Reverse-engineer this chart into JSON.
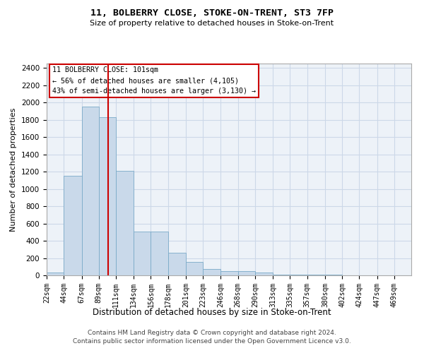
{
  "title1": "11, BOLBERRY CLOSE, STOKE-ON-TRENT, ST3 7FP",
  "title2": "Size of property relative to detached houses in Stoke-on-Trent",
  "xlabel": "Distribution of detached houses by size in Stoke-on-Trent",
  "ylabel": "Number of detached properties",
  "bin_labels": [
    "22sqm",
    "44sqm",
    "67sqm",
    "89sqm",
    "111sqm",
    "134sqm",
    "156sqm",
    "178sqm",
    "201sqm",
    "223sqm",
    "246sqm",
    "268sqm",
    "290sqm",
    "313sqm",
    "335sqm",
    "357sqm",
    "380sqm",
    "402sqm",
    "424sqm",
    "447sqm",
    "469sqm"
  ],
  "bin_left_edges": [
    22,
    44,
    67,
    89,
    111,
    134,
    156,
    178,
    201,
    223,
    246,
    268,
    290,
    313,
    335,
    357,
    380,
    402,
    424,
    447,
    469
  ],
  "bin_widths": [
    22,
    23,
    22,
    22,
    23,
    22,
    22,
    23,
    22,
    23,
    22,
    22,
    23,
    22,
    22,
    23,
    22,
    22,
    23,
    22,
    22
  ],
  "bar_heights": [
    30,
    1150,
    1950,
    1830,
    1210,
    510,
    510,
    265,
    155,
    70,
    45,
    45,
    30,
    12,
    8,
    8,
    5,
    3,
    3,
    2,
    2
  ],
  "bar_color": "#c9d9ea",
  "bar_edge_color": "#7aaac8",
  "vline_x": 101,
  "vline_color": "#cc0000",
  "annotation_text": "11 BOLBERRY CLOSE: 101sqm\n← 56% of detached houses are smaller (4,105)\n43% of semi-detached houses are larger (3,130) →",
  "annotation_box_color": "#ffffff",
  "annotation_box_edge": "#cc0000",
  "ylim": [
    0,
    2450
  ],
  "yticks": [
    0,
    200,
    400,
    600,
    800,
    1000,
    1200,
    1400,
    1600,
    1800,
    2000,
    2200,
    2400
  ],
  "grid_color": "#ccd8e8",
  "background_color": "#edf2f8",
  "footer_line1": "Contains HM Land Registry data © Crown copyright and database right 2024.",
  "footer_line2": "Contains public sector information licensed under the Open Government Licence v3.0."
}
